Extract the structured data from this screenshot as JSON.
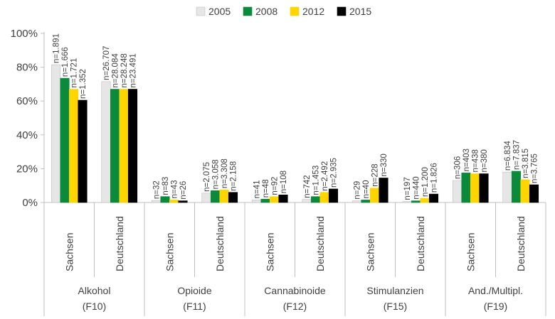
{
  "chart_data": {
    "type": "bar",
    "title": "",
    "xlabel": "",
    "ylabel": "",
    "ylim": [
      0,
      100
    ],
    "y_ticks": [
      "0%",
      "20%",
      "40%",
      "60%",
      "80%",
      "100%"
    ],
    "y_tick_values": [
      0,
      20,
      40,
      60,
      80,
      100
    ],
    "legend_position": "top",
    "grid": false,
    "groups": [
      {
        "label_line1": "Alkohol",
        "label_line2": "(F10)",
        "categories": [
          "Sachsen",
          "Deutschland"
        ]
      },
      {
        "label_line1": "Opioide",
        "label_line2": "(F11)",
        "categories": [
          "Sachsen",
          "Deutschland"
        ]
      },
      {
        "label_line1": "Cannabinoide",
        "label_line2": "(F12)",
        "categories": [
          "Sachsen",
          "Deutschland"
        ]
      },
      {
        "label_line1": "Stimulanzien",
        "label_line2": "(F15)",
        "categories": [
          "Sachsen",
          "Deutschland"
        ]
      },
      {
        "label_line1": "And./Multipl.",
        "label_line2": "(F19)",
        "categories": [
          "Sachsen",
          "Deutschland"
        ]
      }
    ],
    "series": [
      {
        "name": "2005",
        "color": "#e7e6e6",
        "values": [
          81.5,
          71.5,
          1.2,
          5.5,
          1.5,
          1.8,
          1.0,
          0.6,
          13.0,
          18.0
        ],
        "labels": [
          "n=1.891",
          "n=26.707",
          "n=32",
          "n=2.075",
          "n=41",
          "n=742",
          "n=29",
          "n=197",
          "n=306",
          "n=6.834"
        ]
      },
      {
        "name": "2008",
        "color": "#0a8a3a",
        "values": [
          73.5,
          67.0,
          3.5,
          7.0,
          2.0,
          3.5,
          1.5,
          1.0,
          17.5,
          18.5
        ],
        "labels": [
          "n=1.666",
          "n=28.084",
          "n=83",
          "n=3.058",
          "n=48",
          "n=1.453",
          "n=40",
          "n=440",
          "n=403",
          "n=7.837"
        ]
      },
      {
        "name": "2012",
        "color": "#ffd500",
        "values": [
          67.0,
          67.0,
          1.5,
          7.5,
          3.5,
          6.0,
          8.5,
          2.5,
          17.0,
          13.5
        ],
        "labels": [
          "n=1.721",
          "n=28.248",
          "n=43",
          "n=3.308",
          "n=92",
          "n=2.492",
          "n=228",
          "n=1.200",
          "n=438",
          "n=3.815"
        ]
      },
      {
        "name": "2015",
        "color": "#000000",
        "values": [
          60.5,
          67.0,
          1.0,
          6.0,
          4.5,
          8.0,
          14.5,
          5.0,
          17.0,
          10.5
        ],
        "labels": [
          "n=1.352",
          "n=23.491",
          "n=26",
          "n=2.158",
          "n=108",
          "n=2.935",
          "n=330",
          "n=1.826",
          "n=380",
          "n=3.765"
        ]
      }
    ]
  }
}
